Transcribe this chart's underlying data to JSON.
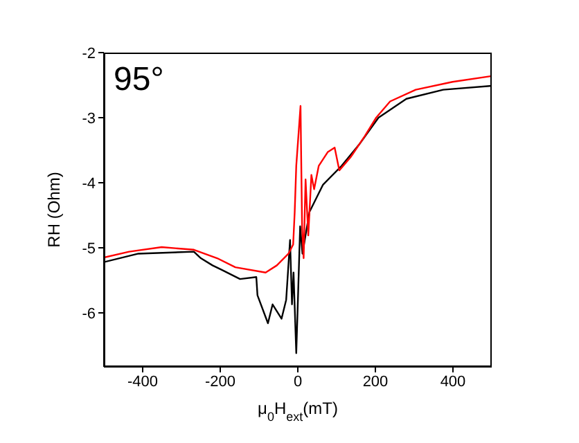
{
  "chart_data": {
    "type": "line",
    "xlabel": "μ$_{0}$H$_{ext}$(mT)",
    "ylabel": "RH (Ohm)",
    "annotations": [
      "95°"
    ],
    "xlim": [
      -500,
      500
    ],
    "xticks": [
      -400,
      -200,
      0,
      200,
      400
    ],
    "ylim": [
      -6.83,
      -2
    ],
    "yticks": [
      -6,
      -5,
      -4,
      -3,
      -2
    ],
    "grid": false,
    "legend": false,
    "marker": "none",
    "line_style": "solid",
    "series": [
      {
        "color": "#000000",
        "x": [
          -500,
          -411,
          -268,
          -250,
          -220,
          -196,
          -149,
          -107,
          -104,
          -77,
          -65,
          -42,
          -30,
          -20,
          -15,
          -11,
          -4,
          1,
          6,
          12,
          30,
          65,
          113,
          161,
          208,
          280,
          375,
          500
        ],
        "values": [
          -5.22,
          -5.09,
          -5.06,
          -5.16,
          -5.27,
          -5.34,
          -5.48,
          -5.45,
          -5.73,
          -6.16,
          -5.87,
          -6.09,
          -5.8,
          -4.88,
          -5.87,
          -5.38,
          -6.62,
          -5.66,
          -4.67,
          -5.09,
          -4.45,
          -4.03,
          -3.74,
          -3.39,
          -3.0,
          -2.71,
          -2.57,
          -2.51
        ]
      },
      {
        "color": "#ff0000",
        "x": [
          -500,
          -435,
          -351,
          -268,
          -208,
          -161,
          -83,
          -54,
          -24,
          -12,
          -8,
          -4,
          7,
          11,
          15,
          20,
          27,
          35,
          42,
          54,
          77,
          95,
          107,
          137,
          173,
          202,
          238,
          304,
          399,
          500
        ],
        "values": [
          -5.15,
          -5.06,
          -4.99,
          -5.03,
          -5.16,
          -5.3,
          -5.38,
          -5.27,
          -5.09,
          -4.95,
          -4.45,
          -3.74,
          -2.82,
          -4.67,
          -5.16,
          -3.95,
          -4.81,
          -3.88,
          -4.1,
          -3.74,
          -3.53,
          -3.46,
          -3.81,
          -3.6,
          -3.28,
          -3.0,
          -2.75,
          -2.57,
          -2.45,
          -2.36
        ]
      }
    ]
  }
}
